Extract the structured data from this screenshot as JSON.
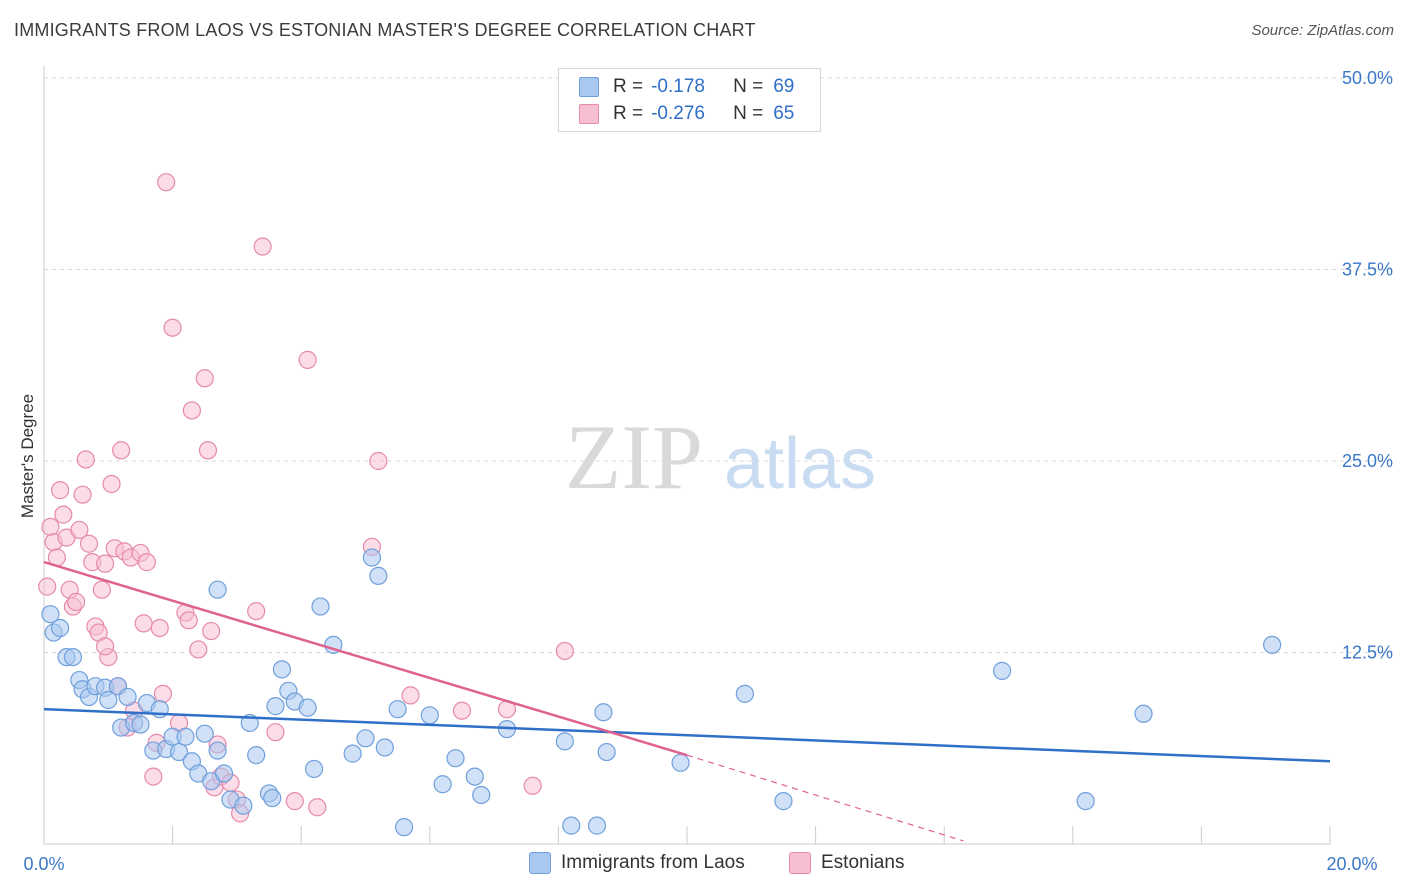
{
  "header": {
    "title": "IMMIGRANTS FROM LAOS VS ESTONIAN MASTER'S DEGREE CORRELATION CHART",
    "source": "Source: ZipAtlas.com"
  },
  "watermark": {
    "zip": "ZIP",
    "atlas": "atlas"
  },
  "legend": {
    "rows": [
      {
        "r_label": "R =",
        "r_value": "-0.178",
        "n_label": "N =",
        "n_value": "69"
      },
      {
        "r_label": "R =",
        "r_value": "-0.276",
        "n_label": "N =",
        "n_value": "65"
      }
    ]
  },
  "colors": {
    "blue_fill": "#a9c8f0",
    "blue_stroke": "#6f9fdc",
    "blue_line": "#2f6fc7",
    "pink_fill": "#f7bfd3",
    "pink_stroke": "#e68aab",
    "pink_line": "#e0628e",
    "tick_label": "#3a78c9",
    "grid": "#d9d9d9"
  },
  "chart_data": {
    "type": "scatter",
    "title": "IMMIGRANTS FROM LAOS VS ESTONIAN MASTER'S DEGREE CORRELATION CHART",
    "xlabel": "",
    "ylabel": "Master's Degree",
    "xlim": [
      0,
      20
    ],
    "ylim": [
      0,
      50
    ],
    "x_tick_labels": [
      "0.0%",
      "20.0%"
    ],
    "y_ticks": [
      12.5,
      25.0,
      37.5,
      50.0
    ],
    "y_tick_labels": [
      "12.5%",
      "25.0%",
      "37.5%",
      "50.0%"
    ],
    "grid": true,
    "legend_position": "bottom-center",
    "series": [
      {
        "name": "Immigrants from Laos",
        "r": -0.178,
        "n": 69,
        "trend": {
          "x": [
            0,
            20
          ],
          "y": [
            8.8,
            5.4
          ]
        },
        "points": [
          [
            0.1,
            15.0
          ],
          [
            0.15,
            13.8
          ],
          [
            0.25,
            14.1
          ],
          [
            0.35,
            12.2
          ],
          [
            0.45,
            12.2
          ],
          [
            0.55,
            10.7
          ],
          [
            0.6,
            10.1
          ],
          [
            0.7,
            9.6
          ],
          [
            0.8,
            10.3
          ],
          [
            0.95,
            10.2
          ],
          [
            1.0,
            9.4
          ],
          [
            1.15,
            10.3
          ],
          [
            1.2,
            7.6
          ],
          [
            1.3,
            9.6
          ],
          [
            1.4,
            7.9
          ],
          [
            1.5,
            7.8
          ],
          [
            1.6,
            9.2
          ],
          [
            1.7,
            6.1
          ],
          [
            1.8,
            8.8
          ],
          [
            1.9,
            6.2
          ],
          [
            2.0,
            7.0
          ],
          [
            2.1,
            6.0
          ],
          [
            2.2,
            7.0
          ],
          [
            2.3,
            5.4
          ],
          [
            2.4,
            4.6
          ],
          [
            2.5,
            7.2
          ],
          [
            2.6,
            4.1
          ],
          [
            2.7,
            6.1
          ],
          [
            2.8,
            4.6
          ],
          [
            2.9,
            2.9
          ],
          [
            2.7,
            16.6
          ],
          [
            3.1,
            2.5
          ],
          [
            3.2,
            7.9
          ],
          [
            3.3,
            5.8
          ],
          [
            3.5,
            3.3
          ],
          [
            3.55,
            3.0
          ],
          [
            3.6,
            9.0
          ],
          [
            3.7,
            11.4
          ],
          [
            3.8,
            10.0
          ],
          [
            3.9,
            9.3
          ],
          [
            4.1,
            8.9
          ],
          [
            4.2,
            4.9
          ],
          [
            4.3,
            15.5
          ],
          [
            4.5,
            13.0
          ],
          [
            4.8,
            5.9
          ],
          [
            5.0,
            6.9
          ],
          [
            5.1,
            18.7
          ],
          [
            5.2,
            17.5
          ],
          [
            5.3,
            6.3
          ],
          [
            5.5,
            8.8
          ],
          [
            5.6,
            1.1
          ],
          [
            6.0,
            8.4
          ],
          [
            6.2,
            3.9
          ],
          [
            6.4,
            5.6
          ],
          [
            6.7,
            4.4
          ],
          [
            6.8,
            3.2
          ],
          [
            7.2,
            7.5
          ],
          [
            8.1,
            6.7
          ],
          [
            8.2,
            1.2
          ],
          [
            8.6,
            1.2
          ],
          [
            8.7,
            8.6
          ],
          [
            8.75,
            6.0
          ],
          [
            9.9,
            5.3
          ],
          [
            10.9,
            9.8
          ],
          [
            11.5,
            2.8
          ],
          [
            14.9,
            11.3
          ],
          [
            16.2,
            2.8
          ],
          [
            17.1,
            8.5
          ],
          [
            19.1,
            13.0
          ]
        ]
      },
      {
        "name": "Estonians",
        "r": -0.276,
        "n": 65,
        "trend": {
          "x": [
            0,
            10.0
          ],
          "y": [
            18.4,
            5.8
          ]
        },
        "trend_dashed": {
          "x": [
            10.0,
            14.3
          ],
          "y": [
            5.8,
            0.2
          ]
        },
        "points": [
          [
            0.05,
            16.8
          ],
          [
            0.1,
            20.7
          ],
          [
            0.15,
            19.7
          ],
          [
            0.2,
            18.7
          ],
          [
            0.25,
            23.1
          ],
          [
            0.3,
            21.5
          ],
          [
            0.35,
            20.0
          ],
          [
            0.4,
            16.6
          ],
          [
            0.45,
            15.5
          ],
          [
            0.5,
            15.8
          ],
          [
            0.55,
            20.5
          ],
          [
            0.6,
            22.8
          ],
          [
            0.65,
            25.1
          ],
          [
            0.7,
            19.6
          ],
          [
            0.75,
            18.4
          ],
          [
            0.8,
            14.2
          ],
          [
            0.85,
            13.8
          ],
          [
            0.9,
            16.6
          ],
          [
            0.95,
            18.3
          ],
          [
            1.0,
            12.2
          ],
          [
            1.05,
            23.5
          ],
          [
            1.1,
            19.3
          ],
          [
            1.15,
            10.3
          ],
          [
            1.2,
            25.7
          ],
          [
            1.25,
            19.1
          ],
          [
            1.3,
            7.6
          ],
          [
            1.35,
            18.7
          ],
          [
            1.4,
            8.7
          ],
          [
            1.5,
            19.0
          ],
          [
            1.6,
            18.4
          ],
          [
            1.7,
            4.4
          ],
          [
            1.75,
            6.6
          ],
          [
            1.8,
            14.1
          ],
          [
            1.85,
            9.8
          ],
          [
            1.9,
            43.2
          ],
          [
            2.0,
            33.7
          ],
          [
            2.1,
            7.9
          ],
          [
            2.2,
            15.1
          ],
          [
            2.25,
            14.6
          ],
          [
            2.3,
            28.3
          ],
          [
            2.4,
            12.7
          ],
          [
            2.5,
            30.4
          ],
          [
            2.55,
            25.7
          ],
          [
            2.6,
            13.9
          ],
          [
            2.65,
            3.7
          ],
          [
            2.7,
            6.5
          ],
          [
            2.75,
            4.4
          ],
          [
            2.9,
            4.0
          ],
          [
            3.0,
            2.9
          ],
          [
            3.05,
            2.0
          ],
          [
            3.3,
            15.2
          ],
          [
            3.4,
            39.0
          ],
          [
            3.6,
            7.3
          ],
          [
            3.9,
            2.8
          ],
          [
            4.1,
            31.6
          ],
          [
            4.25,
            2.4
          ],
          [
            5.1,
            19.4
          ],
          [
            5.2,
            25.0
          ],
          [
            5.7,
            9.7
          ],
          [
            6.5,
            8.7
          ],
          [
            7.2,
            8.8
          ],
          [
            7.6,
            3.8
          ],
          [
            8.1,
            12.6
          ],
          [
            1.55,
            14.4
          ],
          [
            0.95,
            12.9
          ]
        ]
      }
    ]
  }
}
